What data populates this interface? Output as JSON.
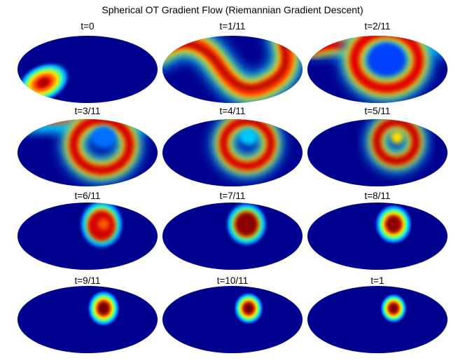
{
  "title": "Spherical OT Gradient Flow (Riemannian Gradient Descent)",
  "panels": [
    {
      "label": "t=0"
    },
    {
      "label": "t=1/11"
    },
    {
      "label": "t=2/11"
    },
    {
      "label": "t=3/11"
    },
    {
      "label": "t=4/11"
    },
    {
      "label": "t=5/11"
    },
    {
      "label": "t=6/11"
    },
    {
      "label": "t=7/11"
    },
    {
      "label": "t=8/11"
    },
    {
      "label": "t=9/11"
    },
    {
      "label": "t=10/11"
    },
    {
      "label": "t=1"
    }
  ],
  "colors": {
    "background_low": "#00008f",
    "colormap": "jet",
    "peak": "#800000"
  }
}
